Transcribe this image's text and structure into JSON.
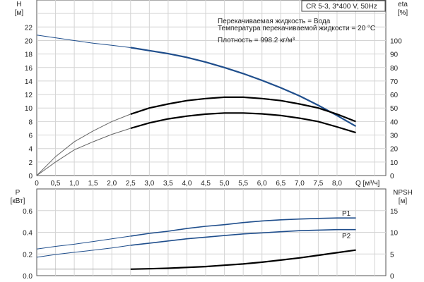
{
  "chart_data": [
    {
      "type": "line",
      "title": "CR 5-3, 3*400 V, 50Hz",
      "annotations": [
        "Перекачиваемая жидкость = Вода",
        "Температура перекачиваемой жидкости = 20 °C",
        "Плотность = 998.2 кг/м³"
      ],
      "xlabel": "Q [м³/ч]",
      "ylabel": [
        "H",
        "[м]"
      ],
      "y2label": [
        "eta",
        "[%]"
      ],
      "xlim": [
        0,
        9.3
      ],
      "ylim": [
        0,
        26
      ],
      "y2lim": [
        0,
        130
      ],
      "x_ticks": [
        "0",
        "0,5",
        "1,0",
        "1,5",
        "2,0",
        "2,5",
        "3,0",
        "3,5",
        "4,0",
        "4,5",
        "5,0",
        "5,5",
        "6,0",
        "6,5",
        "7,0",
        "7,5",
        "8,0"
      ],
      "y_ticks": [
        0,
        2,
        4,
        6,
        8,
        10,
        12,
        14,
        16,
        18,
        20,
        22
      ],
      "y2_ticks": [
        0,
        10,
        20,
        30,
        40,
        50,
        60,
        70,
        80,
        90,
        100
      ],
      "grid": true,
      "x": [
        0,
        0.5,
        1,
        1.5,
        2,
        2.5,
        3,
        3.5,
        4,
        4.5,
        5,
        5.5,
        6,
        6.5,
        7,
        7.5,
        8,
        8.5
      ],
      "series": [
        {
          "axis": "H",
          "color": "#1f4e8c",
          "values": [
            20.8,
            20.4,
            20.0,
            19.6,
            19.3,
            18.95,
            18.5,
            18.05,
            17.5,
            16.8,
            16.0,
            15.1,
            14.1,
            13.0,
            11.8,
            10.4,
            8.9,
            7.3
          ]
        },
        {
          "axis": "eta",
          "color": "#000000",
          "values": [
            0,
            14,
            25,
            33,
            40,
            45.5,
            50,
            53,
            55.5,
            57,
            58,
            58,
            57,
            55.5,
            53,
            50,
            45.5,
            40
          ]
        },
        {
          "axis": "eta",
          "color": "#000000",
          "values": [
            0,
            10,
            19,
            25,
            30.5,
            35,
            39,
            42,
            44,
            45.5,
            46.3,
            46.3,
            45.7,
            44.5,
            42.5,
            40,
            36,
            31.8
          ]
        }
      ],
      "duty_range_start": 2.5
    },
    {
      "type": "line",
      "ylabel": [
        "P",
        "[кВт]"
      ],
      "y2label": [
        "NPSH",
        "[м]"
      ],
      "xlim": [
        0,
        9.3
      ],
      "ylim": [
        0,
        0.8
      ],
      "y2lim": [
        0,
        20
      ],
      "y_ticks": [
        "0.0",
        "0.2",
        "0.4",
        "0.6"
      ],
      "y2_ticks": [
        0,
        5,
        10,
        15
      ],
      "grid": true,
      "x": [
        0,
        0.5,
        1,
        1.5,
        2,
        2.5,
        3,
        3.5,
        4,
        4.5,
        5,
        5.5,
        6,
        6.5,
        7,
        7.5,
        8,
        8.5
      ],
      "series": [
        {
          "name": "P1",
          "axis": "P",
          "color": "#1f4e8c",
          "values": [
            0.245,
            0.27,
            0.29,
            0.315,
            0.34,
            0.365,
            0.39,
            0.41,
            0.435,
            0.455,
            0.47,
            0.49,
            0.505,
            0.515,
            0.522,
            0.528,
            0.532,
            0.532
          ]
        },
        {
          "name": "P2",
          "axis": "P",
          "color": "#1f4e8c",
          "values": [
            0.17,
            0.195,
            0.215,
            0.235,
            0.255,
            0.28,
            0.3,
            0.32,
            0.34,
            0.355,
            0.37,
            0.385,
            0.395,
            0.405,
            0.415,
            0.42,
            0.425,
            0.425
          ]
        },
        {
          "axis": "NPSH",
          "color": "#000000",
          "values": [
            1.5,
            1.5,
            1.5,
            1.5,
            1.5,
            1.5,
            1.6,
            1.7,
            1.9,
            2.1,
            2.4,
            2.7,
            3.1,
            3.6,
            4.1,
            4.7,
            5.3,
            5.9
          ]
        }
      ],
      "duty_range_start": 2.5
    }
  ]
}
